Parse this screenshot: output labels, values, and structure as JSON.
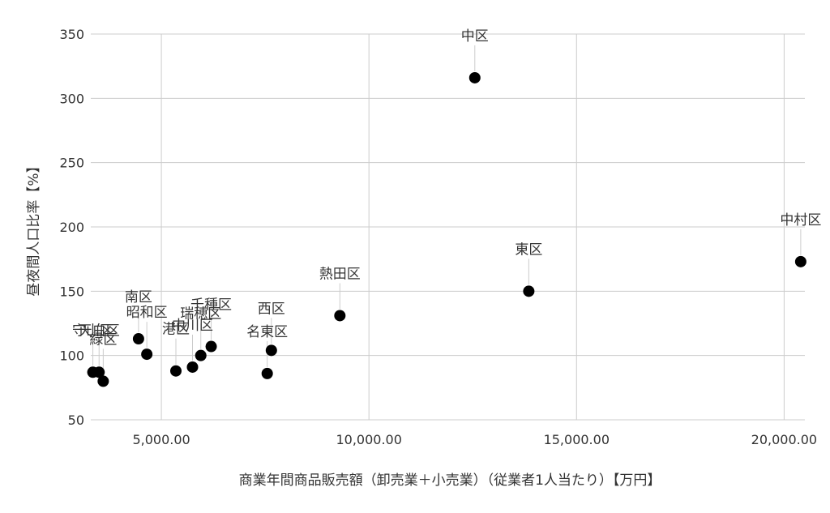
{
  "chart_data": {
    "type": "scatter",
    "xlabel": "商業年間商品販売額（卸売業＋小売業）（従業者1人当たり）【万円】",
    "ylabel": "昼夜間人口比率【%】",
    "xlim": [
      3300,
      20500
    ],
    "ylim": [
      50,
      350
    ],
    "x_ticks": [
      5000,
      10000,
      15000,
      20000
    ],
    "x_tick_labels": [
      "5,000.00",
      "10,000.00",
      "15,000.00",
      "20,000.00"
    ],
    "y_ticks": [
      50,
      100,
      150,
      200,
      250,
      300,
      350
    ],
    "y_tick_labels": [
      "50",
      "100",
      "150",
      "200",
      "250",
      "300",
      "350"
    ],
    "grid": true,
    "marker_color": "#000000",
    "points": [
      {
        "label": "中区",
        "x": 12550,
        "y": 316
      },
      {
        "label": "中村区",
        "x": 20400,
        "y": 173
      },
      {
        "label": "東区",
        "x": 13850,
        "y": 150
      },
      {
        "label": "熱田区",
        "x": 9300,
        "y": 131
      },
      {
        "label": "西区",
        "x": 7650,
        "y": 104
      },
      {
        "label": "名東区",
        "x": 7550,
        "y": 86
      },
      {
        "label": "千種区",
        "x": 6200,
        "y": 107
      },
      {
        "label": "瑞穂区",
        "x": 5950,
        "y": 100
      },
      {
        "label": "中川区",
        "x": 5750,
        "y": 91
      },
      {
        "label": "港区",
        "x": 5350,
        "y": 88
      },
      {
        "label": "昭和区",
        "x": 4650,
        "y": 101
      },
      {
        "label": "南区",
        "x": 4450,
        "y": 113
      },
      {
        "label": "天白区",
        "x": 3500,
        "y": 87
      },
      {
        "label": "緑区",
        "x": 3600,
        "y": 80
      },
      {
        "label": "守山区",
        "x": 3350,
        "y": 87
      }
    ]
  }
}
